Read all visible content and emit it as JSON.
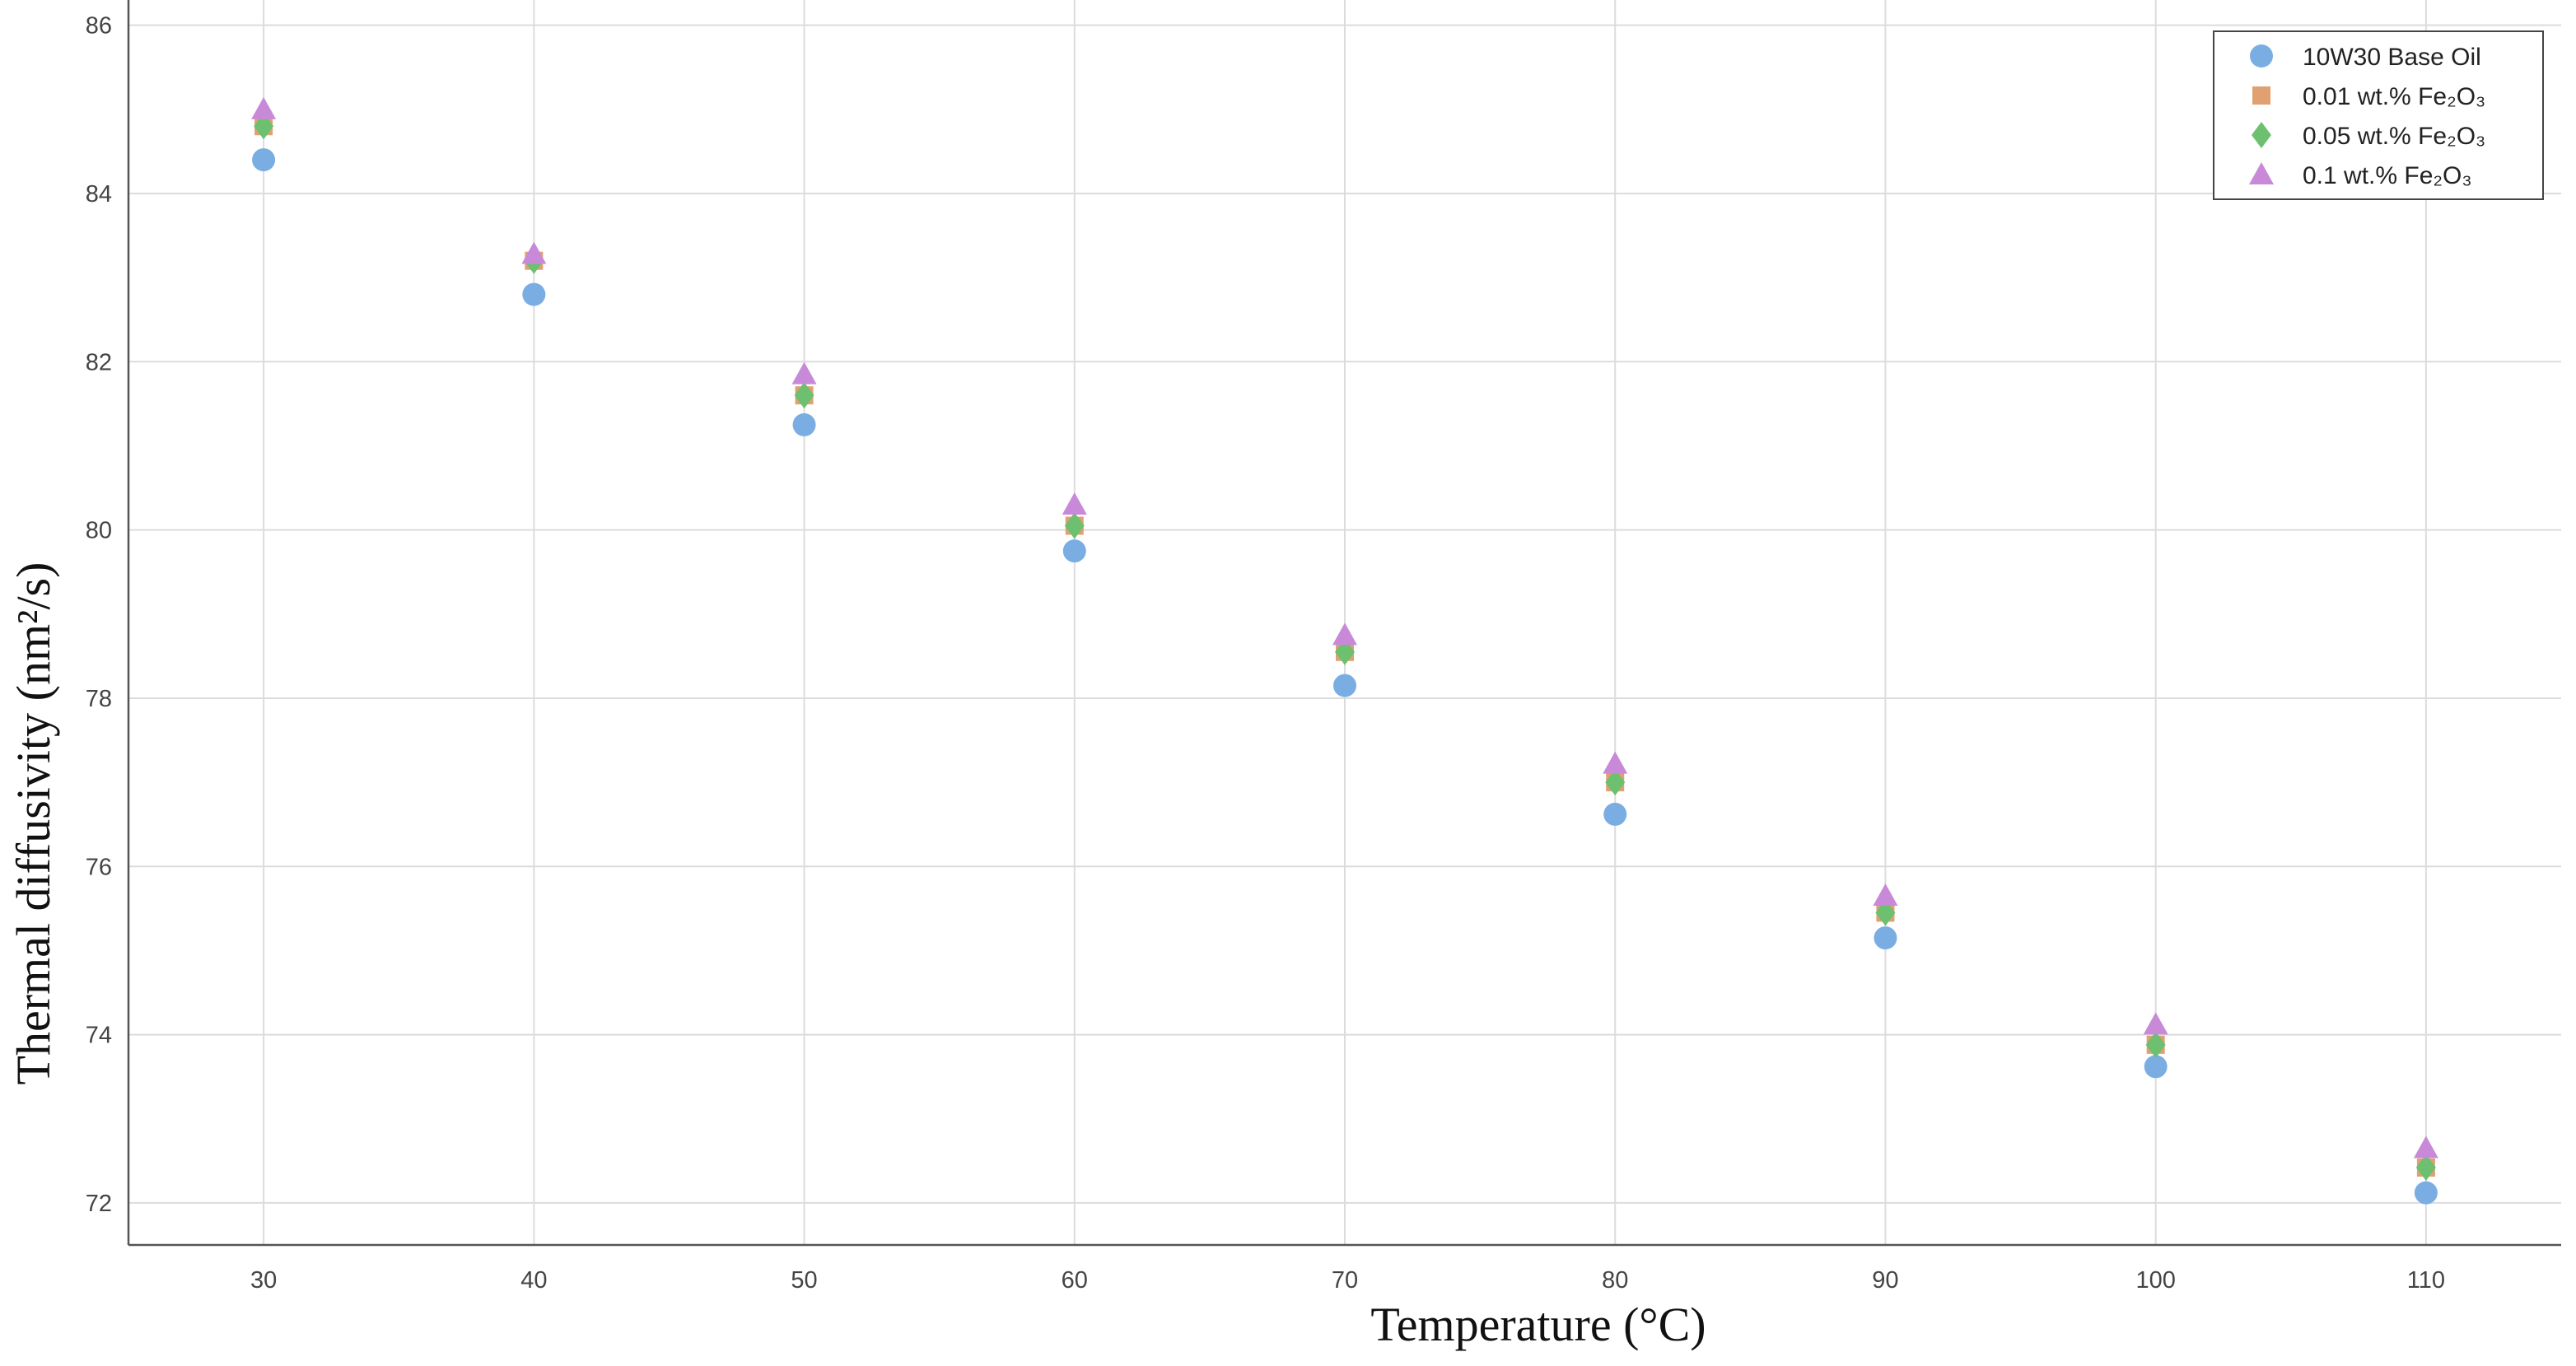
{
  "chart_data": {
    "type": "scatter",
    "title": "",
    "xlabel": "Temperature (°C)",
    "ylabel": "Thermal diffusivity (nm²/s)",
    "xlim": [
      25,
      115
    ],
    "ylim": [
      71.5,
      86.3
    ],
    "x_ticks": [
      30,
      40,
      50,
      60,
      70,
      80,
      90,
      100,
      110
    ],
    "y_ticks": [
      72,
      74,
      76,
      78,
      80,
      82,
      84,
      86
    ],
    "grid": true,
    "legend_position": "top-right",
    "x": [
      30,
      40,
      50,
      60,
      70,
      80,
      90,
      100,
      110
    ],
    "series": [
      {
        "name": "10W30 Base Oil",
        "marker": "circle",
        "color": "#7aaee3",
        "values": [
          84.4,
          82.8,
          81.25,
          79.75,
          78.15,
          76.62,
          75.15,
          73.62,
          72.12
        ]
      },
      {
        "name": "0.01 wt.% Fe₂O₃",
        "marker": "square",
        "color": "#e0a070",
        "values": [
          84.8,
          83.2,
          81.6,
          80.05,
          78.55,
          77.0,
          75.45,
          73.88,
          72.42
        ]
      },
      {
        "name": "0.05 wt.% Fe₂O₃",
        "marker": "diamond",
        "color": "#6cc070",
        "values": [
          84.8,
          83.2,
          81.6,
          80.05,
          78.55,
          77.0,
          75.45,
          73.88,
          72.42
        ]
      },
      {
        "name": "0.1 wt.% Fe₂O₃",
        "marker": "triangle",
        "color": "#c88ad8",
        "values": [
          85.0,
          83.28,
          81.85,
          80.3,
          78.75,
          77.22,
          75.65,
          74.12,
          72.65
        ]
      }
    ]
  }
}
